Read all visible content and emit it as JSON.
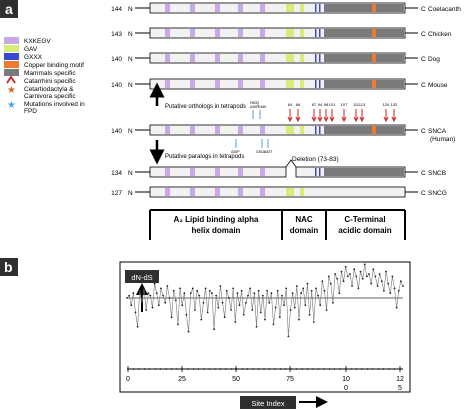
{
  "panel_a": {
    "label": "a",
    "legend": [
      {
        "text": "KXKEGV",
        "color": "#c9a8e8",
        "kind": "box"
      },
      {
        "text": "GAV",
        "color": "#d8ec7a",
        "kind": "box"
      },
      {
        "text": "GXXX",
        "color": "#3c46d6",
        "kind": "box"
      },
      {
        "text": "Copper binding motif",
        "color": "#ee7a2e",
        "kind": "box"
      },
      {
        "text": "Mammals specific",
        "color": "#7a7a7a",
        "kind": "box"
      },
      {
        "text": "Catarrhini specific",
        "color": "#cc2222",
        "kind": "caret"
      },
      {
        "text": "Cetartiodactyla & Carnivora specific",
        "color": "#cc6a22",
        "kind": "star"
      },
      {
        "text": "Mutations involved in FPD",
        "color": "#4aa3e6",
        "kind": "star"
      }
    ],
    "species_rows": [
      {
        "length": "144",
        "n": "N",
        "c": "C",
        "name": "Coelacanth"
      },
      {
        "length": "143",
        "n": "N",
        "c": "C",
        "name": "Chicken"
      },
      {
        "length": "140",
        "n": "N",
        "c": "C",
        "name": "Dog"
      },
      {
        "length": "140",
        "n": "N",
        "c": "C",
        "name": "Mouse"
      }
    ],
    "snca_row": {
      "length": "140",
      "n": "N",
      "c": "C",
      "name": "SNCA",
      "sub": "(Human)"
    },
    "sncb_row": {
      "length": "134",
      "n": "N",
      "c": "C",
      "name": "SNCB"
    },
    "sncg_row": {
      "length": "127",
      "n": "N",
      "c": "C",
      "name": "SNCG"
    },
    "orthologs_label": "Putative orthologs in tetrapods",
    "paralogs_label": "Putative paralogs in tetrapods",
    "deletion_label": "Deletion (73-83)",
    "mutations_top": [
      "H50Q",
      "A30P",
      "E46K"
    ],
    "mutations_bottom": [
      "A30P",
      "G51D",
      "A53T"
    ],
    "red_marks": [
      "64",
      "68",
      "87",
      "94",
      "98",
      "101",
      "107",
      "111",
      "113",
      "129",
      "132"
    ],
    "domains": [
      {
        "line1": "A₂ Lipid binding alpha",
        "line2": "helix domain"
      },
      {
        "line1": "NAC",
        "line2": "domain"
      },
      {
        "line1": "C-Terminal",
        "line2": "acidic domain"
      }
    ]
  },
  "panel_b": {
    "label": "b",
    "y_label": "dN-dS",
    "x_label": "Site Index",
    "x_ticks_top": [
      "0",
      "25",
      "50",
      "75",
      "100",
      "125"
    ],
    "x_ticks_bottom": [
      "0",
      "25",
      "50",
      "75",
      "10",
      "12"
    ],
    "bottom_suffix": [
      "0",
      "5"
    ],
    "series_values": [
      0.0,
      0.1,
      -0.3,
      0.2,
      -0.6,
      -1.2,
      0.3,
      -0.2,
      0.4,
      -0.5,
      0.2,
      0.1,
      -0.4,
      0.6,
      0.2,
      -0.3,
      0.4,
      0.1,
      -0.2,
      0.5,
      0.0,
      -0.8,
      0.3,
      -0.1,
      -1.1,
      0.4,
      -0.3,
      0.2,
      -0.7,
      -1.4,
      0.2,
      0.4,
      -0.5,
      0.3,
      0.1,
      -0.9,
      -0.2,
      0.4,
      -0.6,
      0.3,
      0.2,
      -1.3,
      0.1,
      -0.4,
      0.5,
      -0.2,
      -0.8,
      0.3,
      0.0,
      -0.5,
      0.4,
      -1.0,
      0.2,
      -0.3,
      0.3,
      -0.7,
      -0.2,
      0.1,
      0.4,
      -0.5,
      0.2,
      -1.2,
      0.3,
      -0.6,
      0.1,
      -0.9,
      0.3,
      -0.2,
      0.2,
      -1.1,
      -0.4,
      0.3,
      -0.8,
      0.1,
      -0.3,
      0.4,
      -1.6,
      -0.5,
      0.2,
      -0.4,
      0.5,
      -0.9,
      0.2,
      0.4,
      -0.3,
      0.6,
      -0.7,
      0.3,
      -1.0,
      0.4,
      0.1,
      -0.3,
      0.7,
      0.3,
      -0.5,
      0.9,
      0.6,
      -0.2,
      1.0,
      0.8,
      0.2,
      1.1,
      0.7,
      1.3,
      0.9,
      1.0,
      0.5,
      1.2,
      0.9,
      0.4,
      1.1,
      0.8,
      1.4,
      0.9,
      1.0,
      0.6,
      1.2,
      0.9,
      0.5,
      1.0,
      0.7,
      0.3,
      1.1,
      0.6,
      0.2,
      0.9,
      0.4,
      -0.4,
      0.3,
      0.7,
      0.5
    ]
  }
}
